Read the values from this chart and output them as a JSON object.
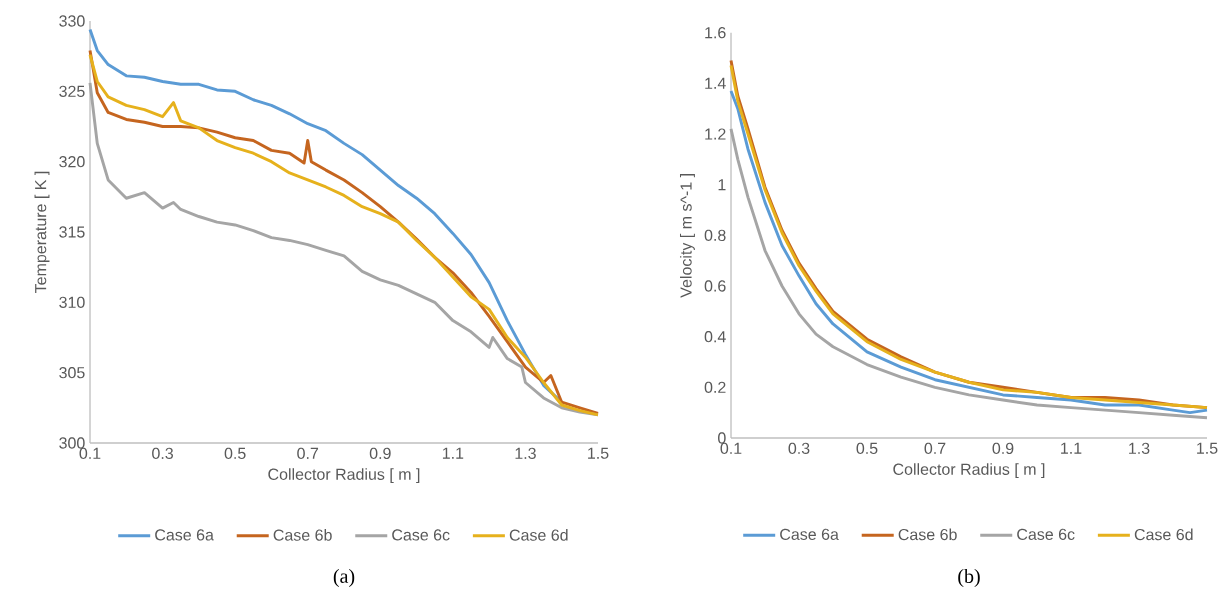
{
  "chart_data": [
    {
      "type": "line",
      "xlabel": "Collector Radius [ m ]",
      "ylabel": "Temperature [ K ]",
      "xlim": [
        0.1,
        1.5
      ],
      "xticks": [
        0.1,
        0.3,
        0.5,
        0.7,
        0.9,
        1.1,
        1.3,
        1.5
      ],
      "ylim": [
        300,
        330
      ],
      "yticks": [
        300,
        305,
        310,
        315,
        320,
        325,
        330
      ],
      "legend": "bottom",
      "line_style": "solid",
      "annotations": [
        "(a)"
      ],
      "series": [
        {
          "name": "Case 6a",
          "color": "#5b9bd5",
          "x": [
            0.1,
            0.12,
            0.15,
            0.2,
            0.25,
            0.3,
            0.35,
            0.4,
            0.45,
            0.5,
            0.55,
            0.6,
            0.65,
            0.7,
            0.75,
            0.8,
            0.85,
            0.9,
            0.95,
            1.0,
            1.05,
            1.1,
            1.15,
            1.2,
            1.25,
            1.3,
            1.35,
            1.4
          ],
          "values": [
            329.4,
            327.9,
            326.9,
            326.1,
            326.0,
            325.7,
            325.5,
            325.5,
            325.1,
            325.0,
            324.4,
            324.0,
            323.4,
            322.7,
            322.2,
            321.3,
            320.5,
            319.4,
            318.3,
            317.4,
            316.3,
            314.9,
            313.4,
            311.4,
            308.7,
            306.3,
            304.1,
            302.9
          ]
        },
        {
          "name": "Case 6b",
          "color": "#c5651f",
          "x": [
            0.1,
            0.12,
            0.15,
            0.2,
            0.25,
            0.3,
            0.35,
            0.4,
            0.45,
            0.5,
            0.55,
            0.6,
            0.65,
            0.69,
            0.7,
            0.71,
            0.75,
            0.8,
            0.85,
            0.9,
            0.95,
            1.0,
            1.05,
            1.1,
            1.15,
            1.2,
            1.25,
            1.3,
            1.35,
            1.37,
            1.4,
            1.45,
            1.5
          ],
          "values": [
            327.9,
            324.9,
            323.5,
            323.0,
            322.8,
            322.5,
            322.5,
            322.4,
            322.1,
            321.7,
            321.5,
            320.8,
            320.6,
            319.9,
            321.5,
            320.0,
            319.4,
            318.7,
            317.8,
            316.8,
            315.7,
            314.5,
            313.2,
            312.1,
            310.7,
            309.0,
            307.2,
            305.4,
            304.3,
            304.8,
            302.9,
            302.5,
            302.1
          ]
        },
        {
          "name": "Case 6c",
          "color": "#a5a5a5",
          "x": [
            0.1,
            0.12,
            0.15,
            0.2,
            0.25,
            0.3,
            0.33,
            0.35,
            0.4,
            0.45,
            0.5,
            0.55,
            0.6,
            0.65,
            0.7,
            0.75,
            0.8,
            0.85,
            0.9,
            0.95,
            1.0,
            1.05,
            1.1,
            1.15,
            1.2,
            1.21,
            1.25,
            1.29,
            1.3,
            1.35,
            1.4,
            1.45,
            1.5
          ],
          "values": [
            325.6,
            321.3,
            318.7,
            317.4,
            317.8,
            316.7,
            317.1,
            316.6,
            316.1,
            315.7,
            315.5,
            315.1,
            314.6,
            314.4,
            314.1,
            313.7,
            313.3,
            312.2,
            311.6,
            311.2,
            310.6,
            310.0,
            308.7,
            307.9,
            306.8,
            307.5,
            306.0,
            305.4,
            304.3,
            303.2,
            302.5,
            302.2,
            302.0
          ]
        },
        {
          "name": "Case 6d",
          "color": "#e6b11c",
          "x": [
            0.1,
            0.12,
            0.15,
            0.2,
            0.25,
            0.3,
            0.33,
            0.35,
            0.4,
            0.45,
            0.5,
            0.55,
            0.6,
            0.65,
            0.7,
            0.75,
            0.8,
            0.85,
            0.9,
            0.95,
            1.0,
            1.05,
            1.1,
            1.15,
            1.2,
            1.25,
            1.3,
            1.35,
            1.4,
            1.45,
            1.5
          ],
          "values": [
            327.6,
            325.7,
            324.6,
            324.0,
            323.7,
            323.2,
            324.2,
            322.9,
            322.4,
            321.5,
            321.0,
            320.6,
            320.0,
            319.2,
            318.7,
            318.2,
            317.6,
            316.8,
            316.3,
            315.7,
            314.4,
            313.2,
            311.8,
            310.4,
            309.5,
            307.5,
            306.1,
            304.3,
            302.7,
            302.3,
            302.0
          ]
        }
      ]
    },
    {
      "type": "line",
      "xlabel": "Collector Radius [ m ]",
      "ylabel": "Velocity [ m s^-1 ]",
      "xlim": [
        0.1,
        1.5
      ],
      "xticks": [
        0.1,
        0.3,
        0.5,
        0.7,
        0.9,
        1.1,
        1.3,
        1.5
      ],
      "ylim": [
        0,
        1.6
      ],
      "yticks": [
        0,
        0.2,
        0.4,
        0.6,
        0.8,
        1,
        1.2,
        1.4,
        1.6
      ],
      "legend": "bottom",
      "line_style": "solid",
      "annotations": [
        "(b)"
      ],
      "series": [
        {
          "name": "Case 6a",
          "color": "#5b9bd5",
          "x": [
            0.1,
            0.12,
            0.15,
            0.2,
            0.25,
            0.3,
            0.35,
            0.4,
            0.5,
            0.6,
            0.7,
            0.8,
            0.9,
            1.0,
            1.1,
            1.2,
            1.3,
            1.4,
            1.45,
            1.5
          ],
          "values": [
            1.37,
            1.3,
            1.14,
            0.93,
            0.76,
            0.64,
            0.53,
            0.45,
            0.34,
            0.28,
            0.23,
            0.2,
            0.17,
            0.16,
            0.15,
            0.13,
            0.13,
            0.11,
            0.1,
            0.11
          ]
        },
        {
          "name": "Case 6b",
          "color": "#c5651f",
          "x": [
            0.1,
            0.12,
            0.15,
            0.2,
            0.25,
            0.3,
            0.35,
            0.4,
            0.5,
            0.6,
            0.7,
            0.8,
            0.9,
            1.0,
            1.1,
            1.2,
            1.3,
            1.4,
            1.5
          ],
          "values": [
            1.49,
            1.35,
            1.22,
            0.99,
            0.82,
            0.69,
            0.59,
            0.5,
            0.39,
            0.32,
            0.26,
            0.22,
            0.2,
            0.18,
            0.16,
            0.16,
            0.15,
            0.13,
            0.12
          ]
        },
        {
          "name": "Case 6c",
          "color": "#a5a5a5",
          "x": [
            0.1,
            0.12,
            0.15,
            0.2,
            0.25,
            0.3,
            0.35,
            0.4,
            0.5,
            0.6,
            0.7,
            0.8,
            0.9,
            1.0,
            1.1,
            1.2,
            1.3,
            1.4,
            1.5
          ],
          "values": [
            1.22,
            1.1,
            0.95,
            0.74,
            0.6,
            0.49,
            0.41,
            0.36,
            0.29,
            0.24,
            0.2,
            0.17,
            0.15,
            0.13,
            0.12,
            0.11,
            0.1,
            0.09,
            0.08
          ]
        },
        {
          "name": "Case 6d",
          "color": "#e6b11c",
          "x": [
            0.1,
            0.12,
            0.15,
            0.2,
            0.25,
            0.3,
            0.35,
            0.4,
            0.5,
            0.6,
            0.7,
            0.8,
            0.9,
            1.0,
            1.1,
            1.2,
            1.3,
            1.4,
            1.5
          ],
          "values": [
            1.47,
            1.33,
            1.2,
            0.98,
            0.81,
            0.68,
            0.58,
            0.49,
            0.38,
            0.31,
            0.26,
            0.22,
            0.19,
            0.18,
            0.16,
            0.15,
            0.14,
            0.13,
            0.12
          ]
        }
      ]
    }
  ]
}
